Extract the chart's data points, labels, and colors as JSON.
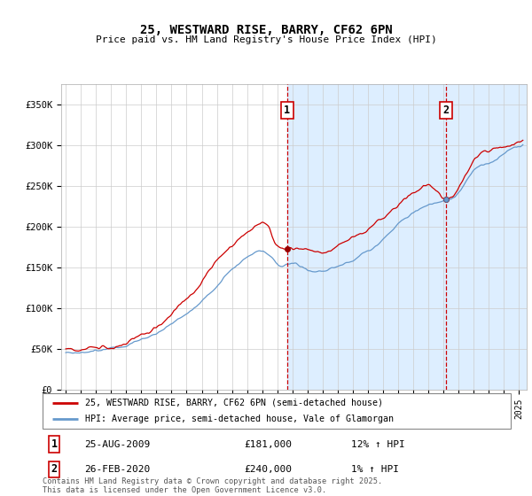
{
  "title": "25, WESTWARD RISE, BARRY, CF62 6PN",
  "subtitle": "Price paid vs. HM Land Registry's House Price Index (HPI)",
  "xlim_start": 1994.7,
  "xlim_end": 2025.5,
  "ylim": [
    0,
    375000
  ],
  "yticks": [
    0,
    50000,
    100000,
    150000,
    200000,
    250000,
    300000,
    350000
  ],
  "ytick_labels": [
    "£0",
    "£50K",
    "£100K",
    "£150K",
    "£200K",
    "£250K",
    "£300K",
    "£350K"
  ],
  "sale1_date_x": 2009.648,
  "sale1_price": 181000,
  "sale2_date_x": 2020.15,
  "sale2_price": 240000,
  "sale1_label": "25-AUG-2009",
  "sale1_price_str": "£181,000",
  "sale1_hpi": "12% ↑ HPI",
  "sale2_label": "26-FEB-2020",
  "sale2_price_str": "£240,000",
  "sale2_hpi": "1% ↑ HPI",
  "legend1": "25, WESTWARD RISE, BARRY, CF62 6PN (semi-detached house)",
  "legend2": "HPI: Average price, semi-detached house, Vale of Glamorgan",
  "footnote": "Contains HM Land Registry data © Crown copyright and database right 2025.\nThis data is licensed under the Open Government Licence v3.0.",
  "red_color": "#cc0000",
  "blue_color": "#6699cc",
  "shade_color": "#ddeeff",
  "dot_color": "#990000"
}
